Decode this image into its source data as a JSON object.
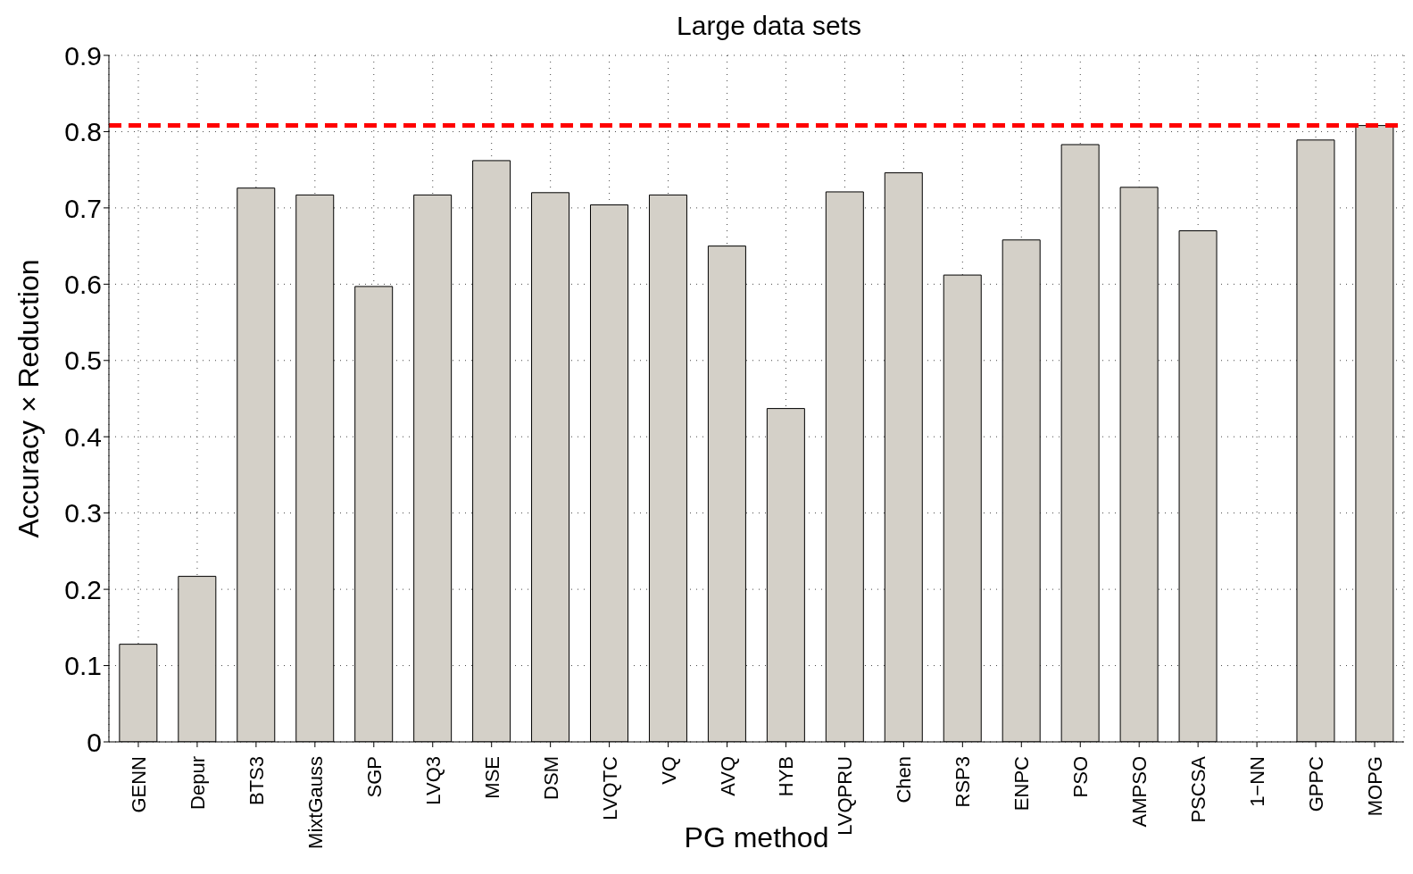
{
  "chart_data": {
    "type": "bar",
    "title": "Large data sets",
    "xlabel": "PG method",
    "ylabel": "Accuracy × Reduction",
    "categories": [
      "GENN",
      "Depur",
      "BTS3",
      "MixtGauss",
      "SGP",
      "LVQ3",
      "MSE",
      "DSM",
      "LVQTC",
      "VQ",
      "AVQ",
      "HYB",
      "LVQPRU",
      "Chen",
      "RSP3",
      "ENPC",
      "PSO",
      "AMPSO",
      "PSCSA",
      "1−NN",
      "GPPC",
      "MOPG"
    ],
    "values": [
      0.128,
      0.217,
      0.726,
      0.717,
      0.597,
      0.717,
      0.762,
      0.72,
      0.704,
      0.717,
      0.65,
      0.437,
      0.721,
      0.746,
      0.612,
      0.658,
      0.783,
      0.727,
      0.67,
      null,
      0.789,
      0.808
    ],
    "color": "#d4d0c8",
    "ylim": [
      0,
      0.9
    ],
    "yticks": [
      0,
      0.1,
      0.2,
      0.3,
      0.4,
      0.5,
      0.6,
      0.7,
      0.8,
      0.9
    ],
    "grid": true,
    "ref_lines": [
      {
        "axis": "y",
        "value": 0.808,
        "color": "#ff0000",
        "line_style": "dashed"
      }
    ]
  }
}
